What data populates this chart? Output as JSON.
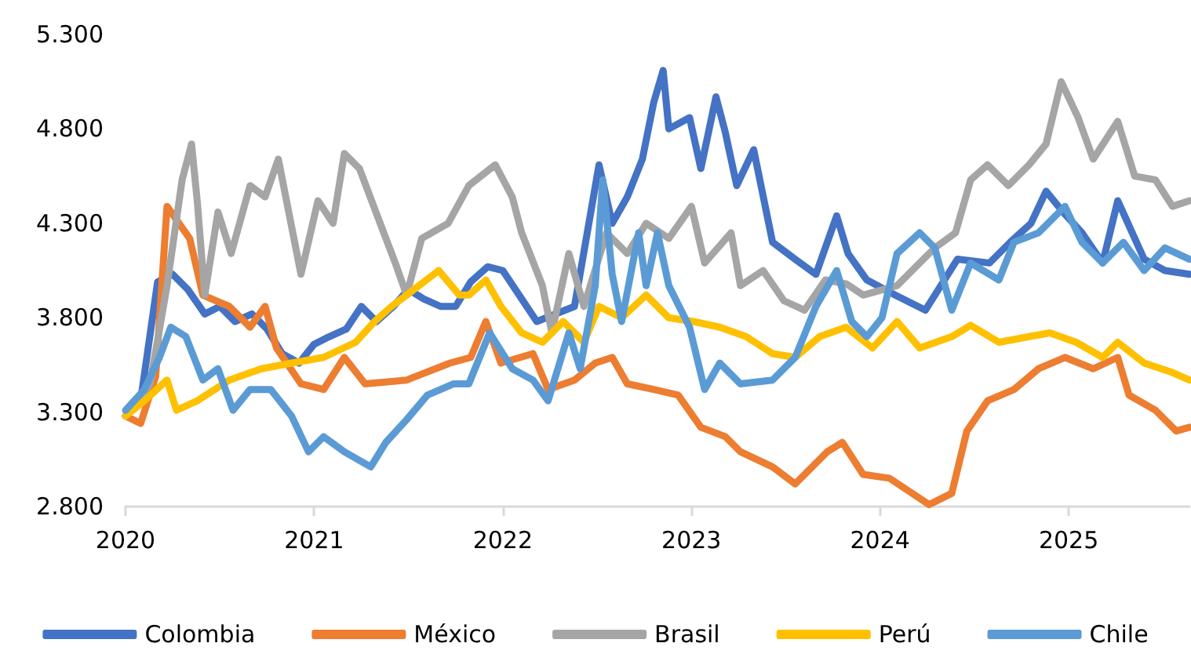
{
  "chart_data": {
    "type": "line",
    "xlim": [
      2020,
      2025.64
    ],
    "xticks": [
      2020,
      2021,
      2022,
      2023,
      2024,
      2025
    ],
    "ylim": [
      2800,
      5300
    ],
    "yticks": [
      {
        "value": 2800,
        "label": "2.800"
      },
      {
        "value": 3300,
        "label": "3.300"
      },
      {
        "value": 3800,
        "label": "3.800"
      },
      {
        "value": 4300,
        "label": "4.300"
      },
      {
        "value": 4800,
        "label": "4.800"
      },
      {
        "value": 5300,
        "label": "5.300"
      }
    ],
    "grid": false,
    "legend": "bottom",
    "marker": "none",
    "line_style": "solid",
    "series": [
      {
        "name": "Colombia",
        "color": "#4472c4",
        "x": [
          2020.0,
          2020.08,
          2020.17,
          2020.25,
          2020.33,
          2020.42,
          2020.5,
          2020.58,
          2020.67,
          2020.75,
          2020.83,
          2020.92,
          2021.0,
          2021.08,
          2021.17,
          2021.25,
          2021.33,
          2021.42,
          2021.5,
          2021.58,
          2021.67,
          2021.75,
          2021.83,
          2021.92,
          2022.0,
          2022.18,
          2022.38,
          2022.51,
          2022.58,
          2022.66,
          2022.74,
          2022.8,
          2022.85,
          2022.88,
          2022.99,
          2023.05,
          2023.13,
          2023.18,
          2023.24,
          2023.33,
          2023.43,
          2023.55,
          2023.66,
          2023.77,
          2023.83,
          2023.93,
          2024.08,
          2024.24,
          2024.41,
          2024.58,
          2024.69,
          2024.8,
          2024.88,
          2024.97,
          2025.07,
          2025.18,
          2025.26,
          2025.4,
          2025.51,
          2025.64
        ],
        "values": [
          3280,
          3360,
          3990,
          4030,
          3950,
          3820,
          3860,
          3780,
          3820,
          3740,
          3610,
          3560,
          3660,
          3700,
          3740,
          3860,
          3780,
          3860,
          3950,
          3900,
          3860,
          3860,
          3990,
          4070,
          4050,
          3780,
          3860,
          4610,
          4300,
          4440,
          4640,
          4940,
          5110,
          4800,
          4860,
          4590,
          4970,
          4780,
          4500,
          4690,
          4200,
          4110,
          4030,
          4340,
          4140,
          4000,
          3920,
          3840,
          4110,
          4090,
          4200,
          4300,
          4470,
          4360,
          4250,
          4090,
          4420,
          4110,
          4050,
          4030
        ]
      },
      {
        "name": "México",
        "color": "#ed7d31",
        "x": [
          2020.0,
          2020.08,
          2020.16,
          2020.22,
          2020.34,
          2020.41,
          2020.55,
          2020.66,
          2020.74,
          2020.8,
          2020.93,
          2021.05,
          2021.16,
          2021.27,
          2021.49,
          2021.72,
          2021.83,
          2021.91,
          2021.99,
          2022.16,
          2022.24,
          2022.38,
          2022.49,
          2022.58,
          2022.66,
          2022.8,
          2022.93,
          2023.05,
          2023.18,
          2023.26,
          2023.43,
          2023.55,
          2023.72,
          2023.8,
          2023.91,
          2024.05,
          2024.26,
          2024.38,
          2024.46,
          2024.57,
          2024.71,
          2024.84,
          2024.98,
          2025.13,
          2025.26,
          2025.32,
          2025.46,
          2025.57,
          2025.64
        ],
        "values": [
          3280,
          3240,
          3490,
          4390,
          4220,
          3920,
          3860,
          3750,
          3860,
          3640,
          3450,
          3420,
          3590,
          3450,
          3470,
          3560,
          3590,
          3780,
          3560,
          3610,
          3420,
          3470,
          3560,
          3590,
          3450,
          3420,
          3390,
          3220,
          3170,
          3090,
          3010,
          2920,
          3090,
          3140,
          2970,
          2950,
          2810,
          2870,
          3200,
          3360,
          3420,
          3530,
          3590,
          3530,
          3590,
          3390,
          3310,
          3200,
          3220
        ]
      },
      {
        "name": "Brasil",
        "color": "#a5a5a5",
        "x": [
          2020.0,
          2020.13,
          2020.22,
          2020.3,
          2020.35,
          2020.38,
          2020.42,
          2020.49,
          2020.56,
          2020.66,
          2020.74,
          2020.81,
          2020.93,
          2021.02,
          2021.1,
          2021.16,
          2021.24,
          2021.35,
          2021.43,
          2021.49,
          2021.57,
          2021.71,
          2021.82,
          2021.96,
          2022.05,
          2022.1,
          2022.21,
          2022.26,
          2022.35,
          2022.43,
          2022.55,
          2022.66,
          2022.76,
          2022.88,
          2023.0,
          2023.07,
          2023.21,
          2023.26,
          2023.38,
          2023.49,
          2023.6,
          2023.71,
          2023.82,
          2023.91,
          2024.09,
          2024.29,
          2024.4,
          2024.48,
          2024.57,
          2024.68,
          2024.79,
          2024.88,
          2024.96,
          2025.05,
          2025.13,
          2025.26,
          2025.35,
          2025.46,
          2025.55,
          2025.64
        ],
        "values": [
          3280,
          3450,
          3970,
          4530,
          4720,
          4420,
          3920,
          4360,
          4140,
          4500,
          4440,
          4640,
          4030,
          4420,
          4300,
          4670,
          4590,
          4300,
          4090,
          3920,
          4220,
          4300,
          4500,
          4610,
          4440,
          4250,
          3970,
          3720,
          4140,
          3860,
          4250,
          4140,
          4300,
          4220,
          4390,
          4090,
          4250,
          3970,
          4050,
          3890,
          3840,
          4000,
          3980,
          3920,
          3970,
          4170,
          4250,
          4530,
          4610,
          4500,
          4610,
          4720,
          5050,
          4860,
          4640,
          4840,
          4550,
          4530,
          4390,
          4420
        ]
      },
      {
        "name": "Perú",
        "color": "#ffc000",
        "x": [
          2020.0,
          2020.1,
          2020.22,
          2020.27,
          2020.38,
          2020.55,
          2020.72,
          2020.88,
          2021.05,
          2021.22,
          2021.32,
          2021.41,
          2021.49,
          2021.66,
          2021.77,
          2021.82,
          2021.91,
          2021.99,
          2022.1,
          2022.21,
          2022.32,
          2022.43,
          2022.51,
          2022.63,
          2022.76,
          2022.88,
          2023.01,
          2023.15,
          2023.29,
          2023.43,
          2023.55,
          2023.68,
          2023.82,
          2023.96,
          2024.09,
          2024.21,
          2024.38,
          2024.48,
          2024.63,
          2024.79,
          2024.9,
          2025.04,
          2025.18,
          2025.26,
          2025.4,
          2025.55,
          2025.64
        ],
        "values": [
          3280,
          3360,
          3470,
          3310,
          3360,
          3470,
          3530,
          3560,
          3590,
          3670,
          3780,
          3860,
          3920,
          4050,
          3920,
          3920,
          4000,
          3860,
          3720,
          3670,
          3780,
          3670,
          3860,
          3800,
          3920,
          3800,
          3780,
          3750,
          3700,
          3610,
          3590,
          3700,
          3750,
          3640,
          3780,
          3640,
          3700,
          3760,
          3670,
          3700,
          3720,
          3670,
          3590,
          3670,
          3560,
          3510,
          3470
        ]
      },
      {
        "name": "Chile",
        "color": "#5b9bd5",
        "x": [
          2020.0,
          2020.1,
          2020.18,
          2020.24,
          2020.32,
          2020.41,
          2020.49,
          2020.57,
          2020.66,
          2020.77,
          2020.88,
          2020.97,
          2021.05,
          2021.16,
          2021.3,
          2021.38,
          2021.49,
          2021.6,
          2021.74,
          2021.82,
          2021.93,
          2022.05,
          2022.16,
          2022.24,
          2022.35,
          2022.41,
          2022.49,
          2022.53,
          2022.58,
          2022.63,
          2022.72,
          2022.76,
          2022.82,
          2022.88,
          2022.99,
          2023.07,
          2023.15,
          2023.26,
          2023.43,
          2023.55,
          2023.66,
          2023.77,
          2023.85,
          2023.93,
          2024.01,
          2024.09,
          2024.21,
          2024.29,
          2024.38,
          2024.48,
          2024.63,
          2024.71,
          2024.84,
          2024.98,
          2025.07,
          2025.18,
          2025.29,
          2025.4,
          2025.51,
          2025.64
        ],
        "values": [
          3310,
          3420,
          3590,
          3750,
          3700,
          3470,
          3530,
          3310,
          3420,
          3420,
          3280,
          3090,
          3170,
          3090,
          3010,
          3140,
          3260,
          3390,
          3450,
          3450,
          3720,
          3530,
          3470,
          3360,
          3720,
          3530,
          3970,
          4530,
          4030,
          3780,
          4250,
          3970,
          4250,
          3970,
          3750,
          3420,
          3560,
          3450,
          3470,
          3590,
          3860,
          4050,
          3780,
          3700,
          3800,
          4140,
          4250,
          4170,
          3840,
          4090,
          4000,
          4200,
          4250,
          4390,
          4200,
          4090,
          4200,
          4050,
          4170,
          4110
        ]
      }
    ]
  }
}
